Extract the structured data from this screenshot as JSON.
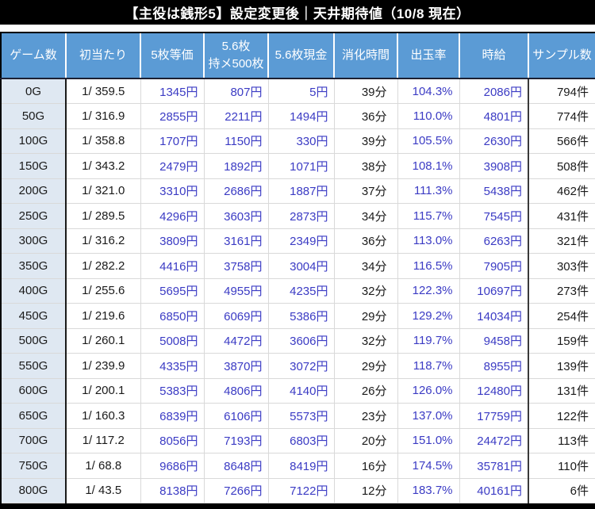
{
  "title": "【主役は銭形5】設定変更後｜天井期待値（10/8 現在）",
  "chart_data": {
    "type": "table",
    "title": "【主役は銭形5】設定変更後｜天井期待値（10/8 現在）",
    "columns": [
      "ゲーム数",
      "初当たり",
      "5枚等価",
      "5.6枚\n持メ500枚",
      "5.6枚現金",
      "消化時間",
      "出玉率",
      "時給",
      "サンプル数"
    ],
    "rows": [
      [
        "0G",
        "1/ 359.5",
        "1345円",
        "807円",
        "5円",
        "39分",
        "104.3%",
        "2086円",
        "794件"
      ],
      [
        "50G",
        "1/ 316.9",
        "2855円",
        "2211円",
        "1494円",
        "36分",
        "110.0%",
        "4801円",
        "774件"
      ],
      [
        "100G",
        "1/ 358.8",
        "1707円",
        "1150円",
        "330円",
        "39分",
        "105.5%",
        "2630円",
        "566件"
      ],
      [
        "150G",
        "1/ 343.2",
        "2479円",
        "1892円",
        "1071円",
        "38分",
        "108.1%",
        "3908円",
        "508件"
      ],
      [
        "200G",
        "1/ 321.0",
        "3310円",
        "2686円",
        "1887円",
        "37分",
        "111.3%",
        "5438円",
        "462件"
      ],
      [
        "250G",
        "1/ 289.5",
        "4296円",
        "3603円",
        "2873円",
        "34分",
        "115.7%",
        "7545円",
        "431件"
      ],
      [
        "300G",
        "1/ 316.2",
        "3809円",
        "3161円",
        "2349円",
        "36分",
        "113.0%",
        "6263円",
        "321件"
      ],
      [
        "350G",
        "1/ 282.2",
        "4416円",
        "3758円",
        "3004円",
        "34分",
        "116.5%",
        "7905円",
        "303件"
      ],
      [
        "400G",
        "1/ 255.6",
        "5695円",
        "4955円",
        "4235円",
        "32分",
        "122.3%",
        "10697円",
        "273件"
      ],
      [
        "450G",
        "1/ 219.6",
        "6850円",
        "6069円",
        "5386円",
        "29分",
        "129.2%",
        "14034円",
        "254件"
      ],
      [
        "500G",
        "1/ 260.1",
        "5008円",
        "4472円",
        "3606円",
        "32分",
        "119.7%",
        "9458円",
        "159件"
      ],
      [
        "550G",
        "1/ 239.9",
        "4335円",
        "3870円",
        "3072円",
        "29分",
        "118.7%",
        "8955円",
        "139件"
      ],
      [
        "600G",
        "1/ 200.1",
        "5383円",
        "4806円",
        "4140円",
        "26分",
        "126.0%",
        "12480円",
        "131件"
      ],
      [
        "650G",
        "1/ 160.3",
        "6839円",
        "6106円",
        "5573円",
        "23分",
        "137.0%",
        "17759円",
        "122件"
      ],
      [
        "700G",
        "1/ 117.2",
        "8056円",
        "7193円",
        "6803円",
        "20分",
        "151.0%",
        "24472円",
        "113件"
      ],
      [
        "750G",
        "1/ 68.8",
        "9686円",
        "8648円",
        "8419円",
        "16分",
        "174.5%",
        "35781円",
        "110件"
      ],
      [
        "800G",
        "1/ 43.5",
        "8138円",
        "7266円",
        "7122円",
        "12分",
        "183.7%",
        "40161円",
        "6件"
      ]
    ]
  },
  "colors": {
    "header_bg": "#5b9bd5",
    "header_text": "#ffffff",
    "row_label_bg": "#dfe8f2",
    "value_blue": "#3b3bc4",
    "text_black": "#1a1a1a",
    "grid_line": "#d9d9d9",
    "frame": "#000000"
  }
}
